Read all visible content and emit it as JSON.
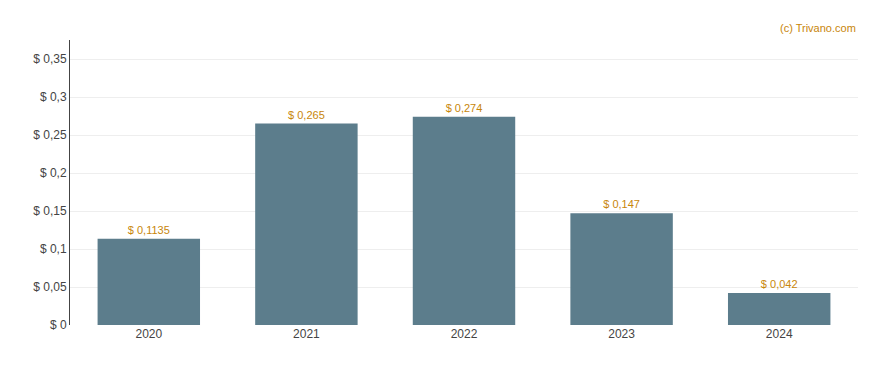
{
  "chart_data": {
    "type": "bar",
    "categories": [
      "2020",
      "2021",
      "2022",
      "2023",
      "2024"
    ],
    "values": [
      0.1135,
      0.265,
      0.274,
      0.147,
      0.042
    ],
    "value_labels": [
      "$ 0,1135",
      "$ 0,265",
      "$ 0,274",
      "$ 0,147",
      "$ 0,042"
    ],
    "data_labels": true,
    "color": "#5c7d8c",
    "ylim": [
      0,
      0.375
    ],
    "yticks": [
      {
        "value": 0,
        "label": "$ 0"
      },
      {
        "value": 0.05,
        "label": "$ 0,05"
      },
      {
        "value": 0.1,
        "label": "$ 0,1"
      },
      {
        "value": 0.15,
        "label": "$ 0,15"
      },
      {
        "value": 0.2,
        "label": "$ 0,2"
      },
      {
        "value": 0.25,
        "label": "$ 0,25"
      },
      {
        "value": 0.3,
        "label": "$ 0,3"
      },
      {
        "value": 0.35,
        "label": "$ 0,35"
      }
    ],
    "grid": true,
    "annotations": [
      "(c) Trivano.com"
    ]
  }
}
